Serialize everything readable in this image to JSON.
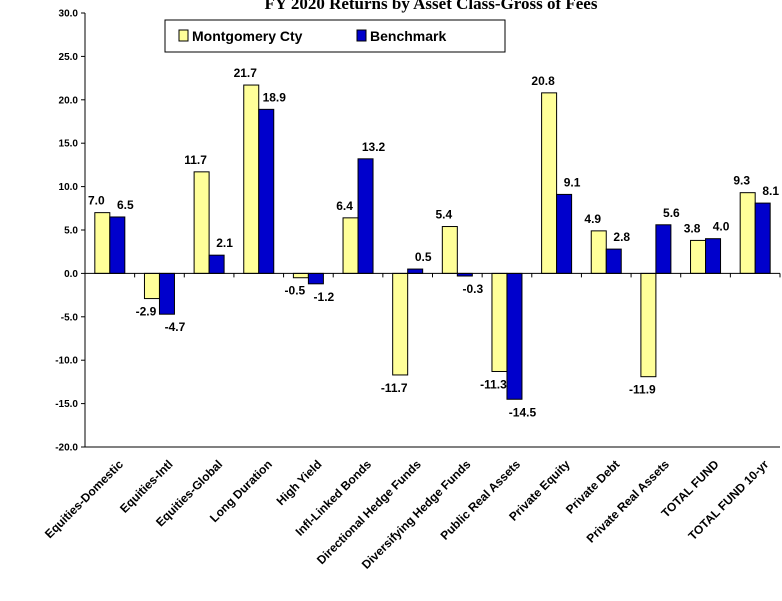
{
  "chart_data": {
    "type": "bar",
    "title": "FY 2020 Returns by Asset Class-Gross of Fees",
    "categories": [
      "Equities-Domestic",
      "Equities-Intl",
      "Equities-Global",
      "Long Duration",
      "High Yield",
      "Infl-Linked Bonds",
      "Directional Hedge Funds",
      "Diversifying Hedge Funds",
      "Public Real Assets",
      "Private Equity",
      "Private Debt",
      "Private Real Assets",
      "TOTAL FUND",
      "TOTAL FUND 10-yr"
    ],
    "series": [
      {
        "name": "Montgomery Cty",
        "color": "#FFFF99",
        "values": [
          7.0,
          -2.9,
          11.7,
          21.7,
          -0.5,
          6.4,
          -11.7,
          5.4,
          -11.3,
          20.8,
          4.9,
          -11.9,
          3.8,
          9.3
        ]
      },
      {
        "name": "Benchmark",
        "color": "#0000CC",
        "values": [
          6.5,
          -4.7,
          2.1,
          18.9,
          -1.2,
          13.2,
          0.5,
          -0.3,
          -14.5,
          9.1,
          2.8,
          5.6,
          4.0,
          8.1
        ]
      }
    ],
    "ylim": [
      -20,
      30
    ],
    "yticks": [
      "30.0",
      "25.0",
      "20.0",
      "15.0",
      "10.0",
      "5.0",
      "0.0",
      "-5.0",
      "-10.0",
      "-15.0",
      "-20.0"
    ],
    "legend": "top-left",
    "grid": false
  }
}
